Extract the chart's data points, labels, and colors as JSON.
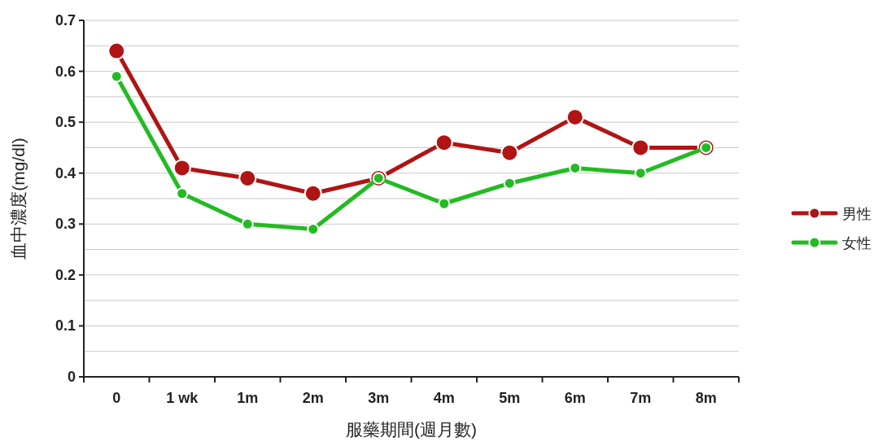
{
  "chart_data": {
    "type": "line",
    "xlabel": "服藥期間(週月數)",
    "ylabel": "血中濃度(mg/dl)",
    "categories": [
      "0",
      "1 wk",
      "1m",
      "2m",
      "3m",
      "4m",
      "5m",
      "6m",
      "7m",
      "8m"
    ],
    "series": [
      {
        "name": "男性",
        "color": "#b01414",
        "values": [
          0.64,
          0.41,
          0.39,
          0.36,
          0.39,
          0.46,
          0.44,
          0.51,
          0.45,
          0.45
        ]
      },
      {
        "name": "女性",
        "color": "#22bb22",
        "values": [
          0.59,
          0.36,
          0.3,
          0.29,
          0.39,
          0.34,
          0.38,
          0.41,
          0.4,
          0.45
        ]
      }
    ],
    "ylim": [
      0,
      0.7
    ],
    "yticks": [
      0,
      {
        "value": 0.05,
        "label": null
      },
      0.1,
      {
        "value": 0.15,
        "label": null
      },
      0.2,
      {
        "value": 0.25,
        "label": null
      },
      0.3,
      {
        "value": 0.35,
        "label": null
      },
      0.4,
      {
        "value": 0.45,
        "label": null
      },
      0.5,
      {
        "value": 0.55,
        "label": null
      },
      0.6,
      {
        "value": 0.65,
        "label": null
      },
      0.7
    ],
    "grid": "y",
    "legend": "right",
    "marker": "circle",
    "line_style": "solid"
  }
}
